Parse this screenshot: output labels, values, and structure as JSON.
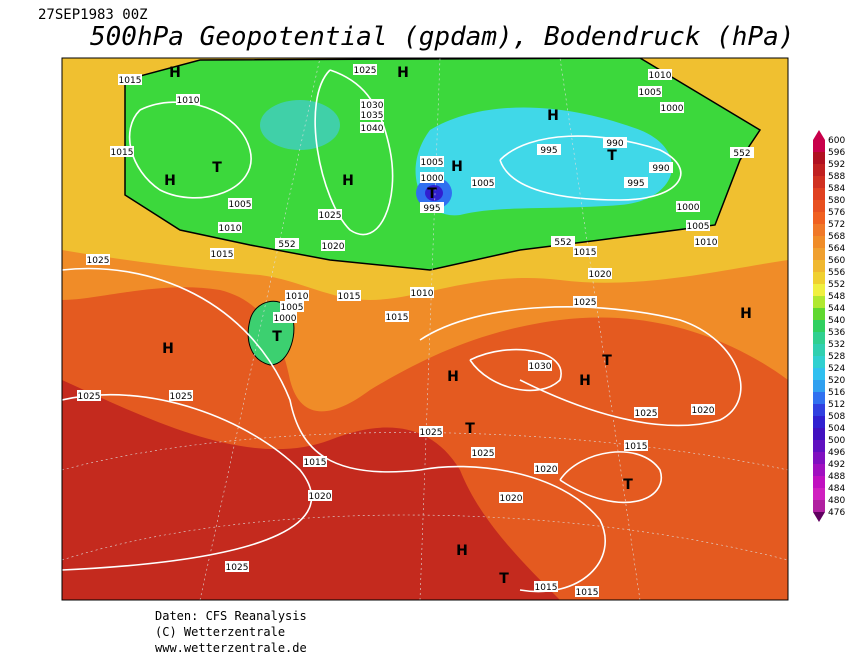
{
  "header": {
    "date": "27SEP1983 00Z",
    "title": "500hPa Geopotential (gpdam), Bodendruck (hPa)"
  },
  "map_labels": [
    "H",
    "1015",
    "1025",
    "H",
    "1010",
    "1010",
    "1005",
    "1000",
    "H",
    "1030",
    "1035",
    "1040",
    "1015",
    "H",
    "T",
    "H",
    "1005",
    "H",
    "1000",
    "T",
    "995",
    "995",
    "990",
    "T",
    "990",
    "995",
    "1005",
    "1005",
    "1025",
    "1000",
    "1005",
    "1010",
    "1010",
    "1015",
    "552",
    "1020",
    "552",
    "552",
    "1015",
    "1025",
    "1020",
    "1010",
    "1005",
    "1000",
    "T",
    "1015",
    "1010",
    "1025",
    "1015",
    "H",
    "H",
    "1030",
    "T",
    "H",
    "H",
    "1025",
    "1025",
    "T",
    "1025",
    "1025",
    "1025",
    "1020",
    "1015",
    "1015",
    "1020",
    "T",
    "1020",
    "1020",
    "H",
    "1025",
    "T",
    "1015",
    "1015"
  ],
  "colorbar": {
    "labels": [
      600,
      596,
      592,
      588,
      584,
      580,
      576,
      572,
      568,
      564,
      560,
      556,
      552,
      548,
      544,
      540,
      536,
      532,
      528,
      524,
      520,
      516,
      512,
      508,
      504,
      500,
      496,
      492,
      488,
      484,
      480,
      476
    ],
    "colors": [
      "#c8004a",
      "#b01020",
      "#c02020",
      "#d03020",
      "#e04020",
      "#e85020",
      "#f06020",
      "#f07828",
      "#f08c28",
      "#f0a030",
      "#f0b830",
      "#f0d030",
      "#f0f040",
      "#b0e830",
      "#60d830",
      "#30d060",
      "#30d090",
      "#30d0b0",
      "#30d0d0",
      "#30c0f0",
      "#30a0f0",
      "#3070f0",
      "#3040e0",
      "#3020d0",
      "#4010c0",
      "#6010c0",
      "#8010c0",
      "#a010c0",
      "#c010c0",
      "#d020c0",
      "#b020a0",
      "#600060"
    ]
  },
  "footer": {
    "source": "Daten: CFS Reanalysis",
    "copyright": "(C) Wetterzentrale",
    "url": "www.wetterzentrale.de"
  }
}
